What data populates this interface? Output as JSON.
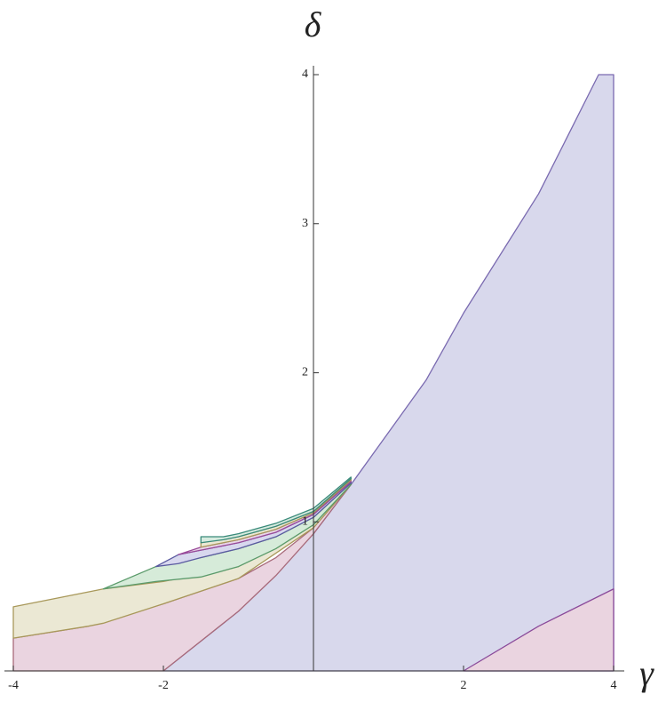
{
  "chart_data": {
    "type": "region",
    "x_label": "γ",
    "y_label": "δ",
    "xlim": [
      -4,
      4
    ],
    "ylim": [
      0,
      4
    ],
    "xticks": [
      -4,
      -2,
      2,
      4
    ],
    "yticks": [
      1,
      2,
      3,
      4
    ],
    "series": [
      {
        "color": "#d8d8ec",
        "edge": "#7a6ab0",
        "x": [
          -2,
          -1,
          0,
          0.5,
          1,
          1.5,
          2,
          3,
          3.8,
          4
        ],
        "lower": [
          0,
          0,
          0,
          0,
          0,
          0,
          0,
          0,
          0,
          0
        ],
        "upper": [
          0,
          0.4,
          0.92,
          1.25,
          1.6,
          1.95,
          2.4,
          3.2,
          4,
          4
        ]
      },
      {
        "color": "#ead4e0",
        "edge": "#a86a7a",
        "x": [
          -4,
          -3,
          -2,
          -1,
          -0.5,
          0,
          0.5
        ],
        "lower": [
          0,
          0,
          0,
          0.4,
          0.64,
          0.92,
          1.25
        ],
        "upper": [
          0.22,
          0.3,
          0.45,
          0.62,
          0.76,
          0.96,
          1.25
        ]
      },
      {
        "color": "#ebe8d4",
        "edge": "#a8985a",
        "x": [
          -4,
          -3,
          -2.8,
          -2,
          -1,
          0,
          0.5
        ],
        "lower": [
          0.22,
          0.3,
          0.32,
          0.45,
          0.62,
          0.96,
          1.25
        ],
        "upper": [
          0.43,
          0.53,
          0.55,
          0.6,
          0.7,
          0.98,
          1.25
        ]
      },
      {
        "color": "#d6ebd9",
        "edge": "#5a9a6a",
        "x": [
          -2.8,
          -2.1,
          -1.5,
          -1,
          -0.5,
          0,
          0.5
        ],
        "lower": [
          0.55,
          0.6,
          0.63,
          0.7,
          0.82,
          0.98,
          1.25
        ],
        "upper": [
          0.55,
          0.7,
          0.76,
          0.82,
          0.9,
          1.03,
          1.26
        ]
      },
      {
        "color": "#d8d8ee",
        "edge": "#5a5aa0",
        "x": [
          -2.1,
          -1.8,
          -1.5,
          -1,
          -0.5,
          0,
          0.5
        ],
        "lower": [
          0.7,
          0.72,
          0.76,
          0.82,
          0.9,
          1.03,
          1.26
        ],
        "upper": [
          0.7,
          0.78,
          0.81,
          0.86,
          0.93,
          1.05,
          1.27
        ]
      },
      {
        "color": "#e8d6e8",
        "edge": "#9a4a9a",
        "x": [
          -1.8,
          -1.5,
          -1,
          -0.5,
          0,
          0.5
        ],
        "lower": [
          0.78,
          0.81,
          0.86,
          0.93,
          1.05,
          1.27
        ],
        "upper": [
          0.78,
          0.83,
          0.88,
          0.95,
          1.06,
          1.28
        ]
      },
      {
        "color": "#ebe8d4",
        "edge": "#a8985a",
        "x": [
          -1.5,
          -1,
          -0.5,
          0,
          0.5
        ],
        "lower": [
          0.83,
          0.88,
          0.95,
          1.06,
          1.28
        ],
        "upper": [
          0.86,
          0.9,
          0.97,
          1.07,
          1.29
        ]
      },
      {
        "color": "#d6ebdf",
        "edge": "#3a8a7a",
        "x": [
          -1.5,
          -1.2,
          -1,
          -0.5,
          0,
          0.5
        ],
        "lower": [
          0.86,
          0.88,
          0.9,
          0.97,
          1.07,
          1.29
        ],
        "upper": [
          0.9,
          0.9,
          0.92,
          0.99,
          1.09,
          1.3
        ]
      },
      {
        "color": "#ead4e0",
        "edge": "#8a4a9a",
        "x": [
          2,
          3,
          4
        ],
        "lower": [
          0,
          0,
          0
        ],
        "upper": [
          0,
          0.3,
          0.55
        ]
      }
    ]
  }
}
